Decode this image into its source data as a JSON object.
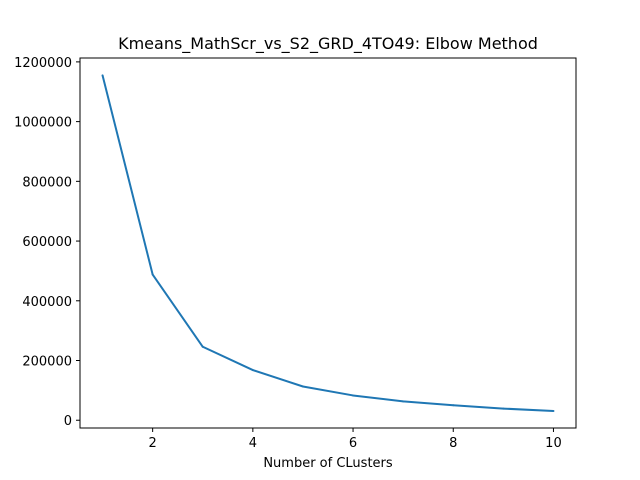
{
  "chart_data": {
    "type": "line",
    "title": "Kmeans_MathScr_vs_S2_GRD_4TO49: Elbow Method",
    "xlabel": "Number of CLusters",
    "ylabel": "",
    "x": [
      1,
      2,
      3,
      4,
      5,
      6,
      7,
      8,
      9,
      10
    ],
    "series": [
      {
        "values": [
          1155000,
          488000,
          246000,
          168000,
          113000,
          83000,
          63000,
          50000,
          39000,
          31000
        ],
        "color": "#1f77b4"
      }
    ],
    "xlim": [
      0.55,
      10.45
    ],
    "ylim": [
      -26000,
      1213000
    ],
    "xticks": [
      2,
      4,
      6,
      8,
      10
    ],
    "yticks": [
      0,
      200000,
      400000,
      600000,
      800000,
      1000000,
      1200000
    ],
    "grid": false,
    "legend": "none"
  }
}
